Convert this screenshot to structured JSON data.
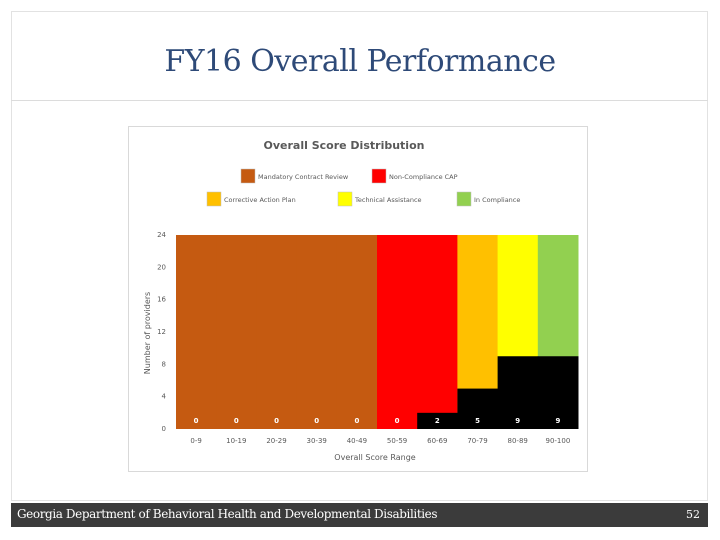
{
  "slide": {
    "title": "FY16 Overall Performance",
    "footer_text": "Georgia Department of Behavioral Health and Developmental Disabilities",
    "page_number": "52"
  },
  "chart_data": {
    "type": "bar",
    "title": "Overall  Score  Distribution",
    "xlabel": "Overall Score Range",
    "ylabel": "Number of providers",
    "categories": [
      "0-9",
      "10-19",
      "20-29",
      "30-39",
      "40-49",
      "50-59",
      "60-69",
      "70-79",
      "80-89",
      "90-100"
    ],
    "values": [
      0,
      0,
      0,
      0,
      0,
      0,
      2,
      5,
      9,
      9
    ],
    "band_colors": [
      "#c55a11",
      "#c55a11",
      "#c55a11",
      "#c55a11",
      "#c55a11",
      "#ff0000",
      "#ff0000",
      "#ffc000",
      "#ffff00",
      "#92d050"
    ],
    "bar_color": "#000000",
    "value_label_color": "#ffffff",
    "yticks": [
      0,
      4,
      8,
      12,
      16,
      20,
      24
    ],
    "ylim": [
      0,
      24
    ],
    "legend": [
      {
        "name": "Mandatory Contract Review",
        "color": "#c55a11"
      },
      {
        "name": "Non-Compliance CAP",
        "color": "#ff0000"
      },
      {
        "name": "Corrective Action Plan",
        "color": "#ffc000"
      },
      {
        "name": "Technical Assistance",
        "color": "#ffff00"
      },
      {
        "name": "In Compliance",
        "color": "#92d050"
      }
    ],
    "legend_position": "top",
    "grid": false
  }
}
